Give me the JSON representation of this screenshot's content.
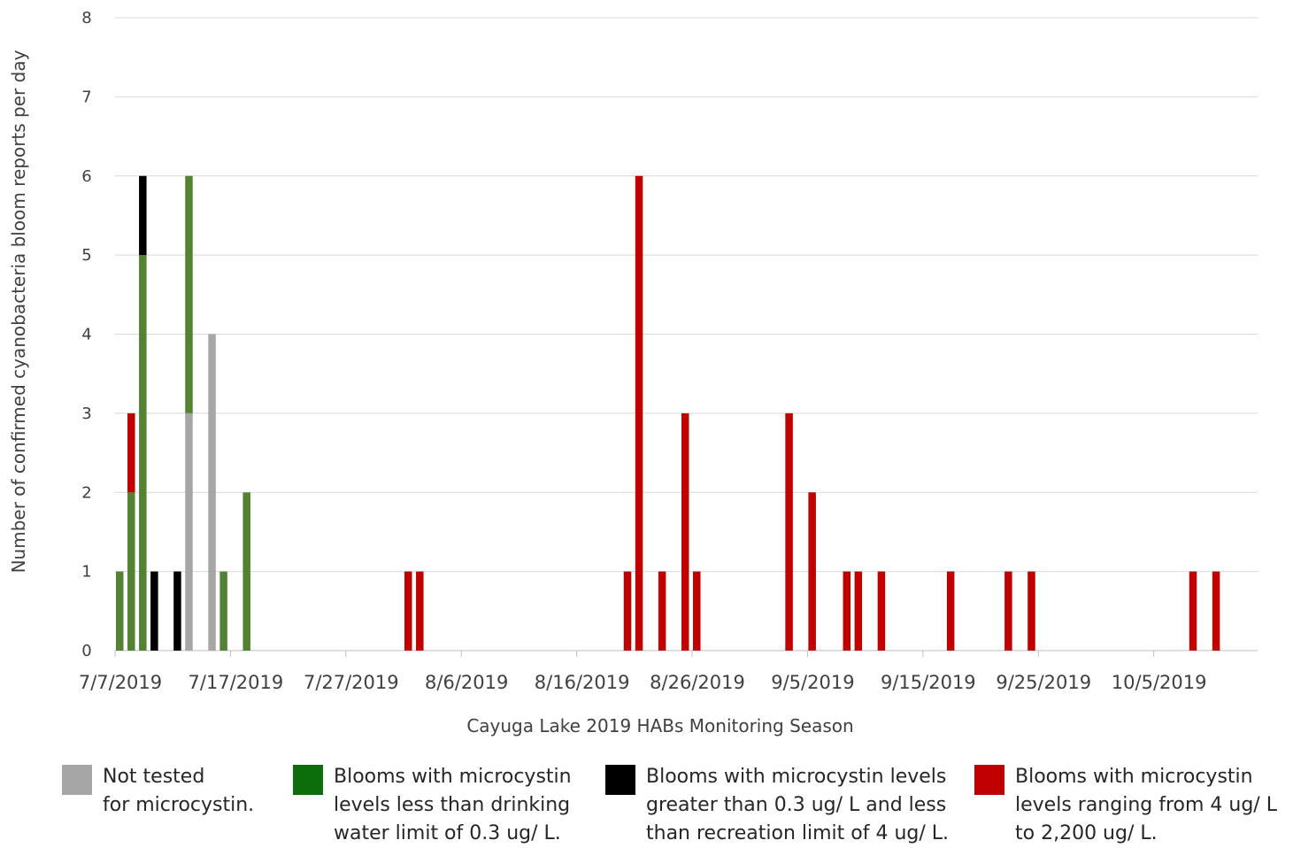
{
  "chart_data": {
    "type": "bar",
    "stacked": true,
    "xlabel": "Cayuga Lake 2019 HABs Monitoring Season",
    "ylabel": "Number of confirmed cyanobacteria bloom reports per day",
    "ylim": [
      0,
      8
    ],
    "yticks": [
      "0",
      "1",
      "2",
      "3",
      "4",
      "5",
      "6",
      "7",
      "8"
    ],
    "x_start": "7/7/2019",
    "x_end": "10/14/2019",
    "xtick_labels": [
      "7/7/2019",
      "7/17/2019",
      "7/27/2019",
      "8/6/2019",
      "8/16/2019",
      "8/26/2019",
      "9/5/2019",
      "9/15/2019",
      "9/25/2019",
      "10/5/2019"
    ],
    "grid": true,
    "legend_position": "bottom",
    "series": [
      {
        "name": "Not tested for microcystin.",
        "color": "#a6a6a6",
        "points": [
          [
            "7/13/2019",
            3
          ],
          [
            "7/15/2019",
            4
          ]
        ]
      },
      {
        "name": "Blooms with microcystin levels less than drinking water limit of 0.3 ug/ L.",
        "color": "#548235",
        "points": [
          [
            "7/7/2019",
            1
          ],
          [
            "7/8/2019",
            2
          ],
          [
            "7/9/2019",
            5
          ],
          [
            "7/13/2019",
            3
          ],
          [
            "7/16/2019",
            1
          ],
          [
            "7/18/2019",
            2
          ]
        ]
      },
      {
        "name": "Blooms with microcystin levels greater than 0.3 ug/ L and less than recreation limit of 4 ug/ L.",
        "color": "#000000",
        "points": [
          [
            "7/9/2019",
            1
          ],
          [
            "7/10/2019",
            1
          ],
          [
            "7/12/2019",
            1
          ]
        ]
      },
      {
        "name": "Blooms with microcystin levels ranging from 4 ug/ L to 2,200 ug/ L.",
        "color": "#c00000",
        "points": [
          [
            "7/8/2019",
            1
          ],
          [
            "8/1/2019",
            1
          ],
          [
            "8/2/2019",
            1
          ],
          [
            "8/20/2019",
            1
          ],
          [
            "8/21/2019",
            6
          ],
          [
            "8/23/2019",
            1
          ],
          [
            "8/25/2019",
            3
          ],
          [
            "8/26/2019",
            1
          ],
          [
            "9/3/2019",
            3
          ],
          [
            "9/5/2019",
            2
          ],
          [
            "9/8/2019",
            1
          ],
          [
            "9/9/2019",
            1
          ],
          [
            "9/11/2019",
            1
          ],
          [
            "9/17/2019",
            1
          ],
          [
            "9/22/2019",
            1
          ],
          [
            "9/24/2019",
            1
          ],
          [
            "10/8/2019",
            1
          ],
          [
            "10/10/2019",
            1
          ]
        ]
      }
    ]
  },
  "legend": [
    {
      "color": "#a6a6a6",
      "lines": [
        "Not tested",
        "for microcystin."
      ]
    },
    {
      "color": "#0b6e0b",
      "lines": [
        "Blooms with microcystin",
        "levels less than drinking",
        "water limit of 0.3 ug/ L."
      ]
    },
    {
      "color": "#000000",
      "lines": [
        "Blooms with microcystin levels",
        "greater than 0.3 ug/ L and less",
        "than recreation limit of 4 ug/ L."
      ]
    },
    {
      "color": "#c00000",
      "lines": [
        "Blooms with microcystin",
        "levels ranging from 4 ug/ L",
        "to 2,200 ug/ L."
      ]
    }
  ]
}
